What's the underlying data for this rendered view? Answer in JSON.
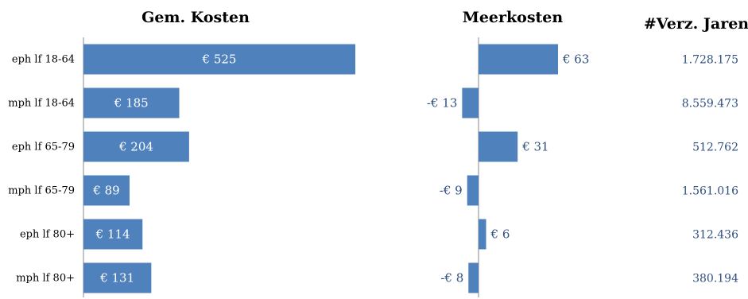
{
  "chart_data": [
    {
      "type": "bar",
      "orientation": "horizontal",
      "title": "Gem. Kosten",
      "categories": [
        "eph lf 18-64",
        "mph lf 18-64",
        "eph lf 65-79",
        "mph lf 65-79",
        "eph lf 80+",
        "mph lf 80+"
      ],
      "values": [
        525,
        185,
        204,
        89,
        114,
        131
      ],
      "value_labels": [
        "€ 525",
        "€ 185",
        "€ 204",
        "€ 89",
        "€ 114",
        "€ 131"
      ],
      "color": "#4f81bd"
    },
    {
      "type": "bar",
      "orientation": "horizontal",
      "title": "Meerkosten",
      "categories": [
        "eph lf 18-64",
        "mph lf 18-64",
        "eph lf 65-79",
        "mph lf 65-79",
        "eph lf 80+",
        "mph lf 80+"
      ],
      "values": [
        63,
        -13,
        31,
        -9,
        6,
        -8
      ],
      "value_labels": [
        "€ 63",
        "-€ 13",
        "€ 31",
        "-€ 9",
        "€ 6",
        "-€ 8"
      ],
      "color": "#4f81bd"
    },
    {
      "type": "table",
      "title": "#Verz. Jaren",
      "categories": [
        "eph lf 18-64",
        "mph lf 18-64",
        "eph lf 65-79",
        "mph lf 65-79",
        "eph lf 80+",
        "mph lf 80+"
      ],
      "values": [
        "1.728.175",
        "8.559.473",
        "512.762",
        "1.561.016",
        "312.436",
        "380.194"
      ]
    }
  ]
}
